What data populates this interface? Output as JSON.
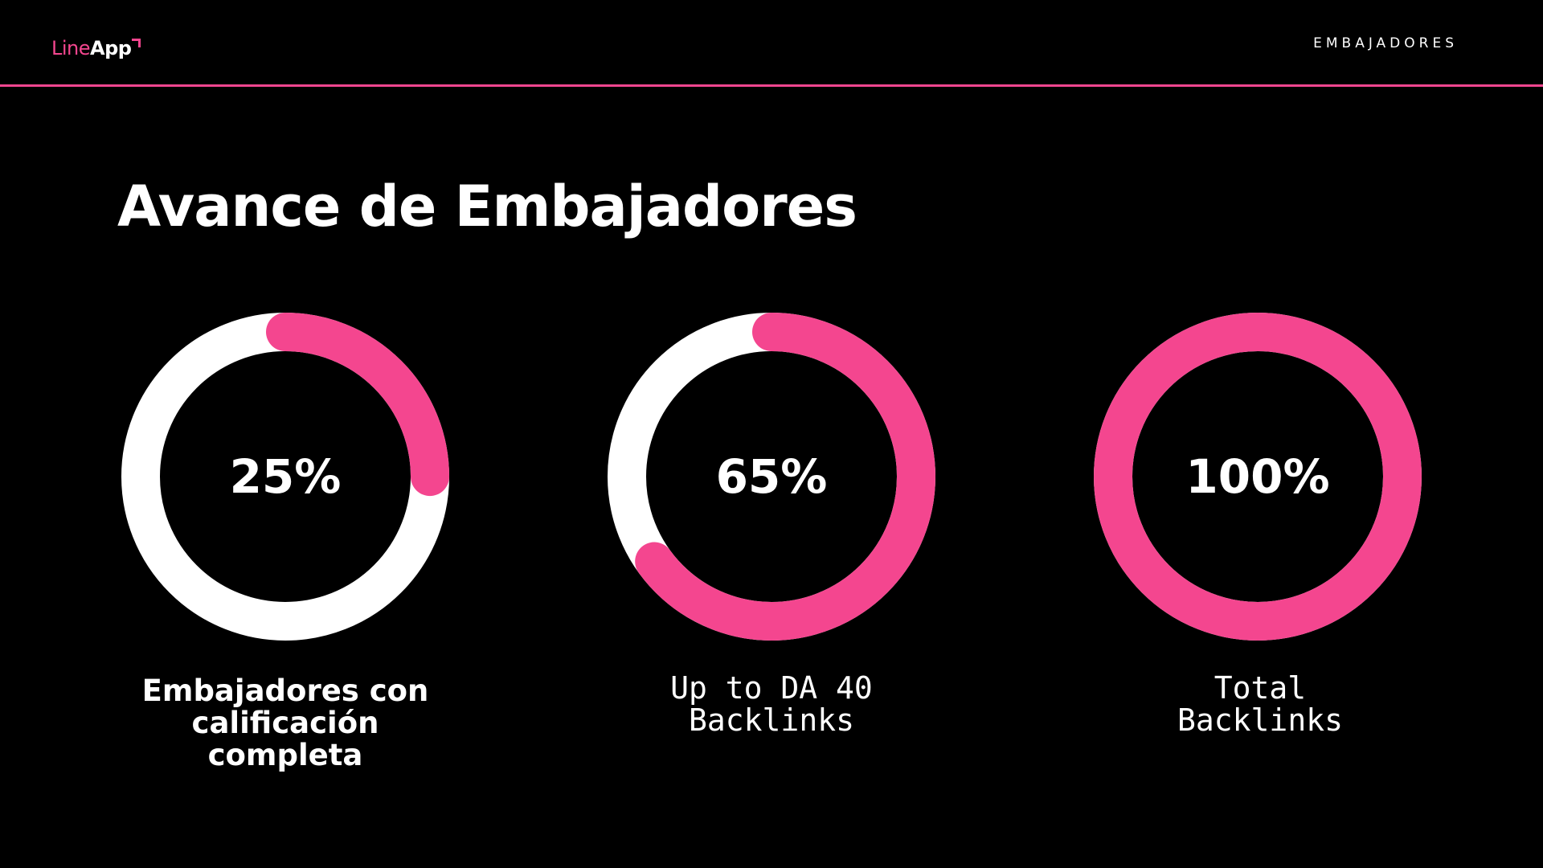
{
  "header": {
    "logo_line": "Line",
    "logo_app": "App",
    "section_label": "EMBAJADORES"
  },
  "colors": {
    "background": "#000000",
    "accent": "#f4468f",
    "track": "#ffffff"
  },
  "chart_data": {
    "type": "pie",
    "title": "Avance de Embajadores",
    "subtitle": "",
    "series": [
      {
        "name": "Embajadores con calificación completa",
        "value": 25,
        "label": "25%"
      },
      {
        "name": "Up to DA 40 Backlinks",
        "value": 65,
        "label": "65%"
      },
      {
        "name": "Total Backlinks",
        "value": 100,
        "label": "100%"
      }
    ],
    "max": 100,
    "grid": false,
    "legend": "none"
  }
}
